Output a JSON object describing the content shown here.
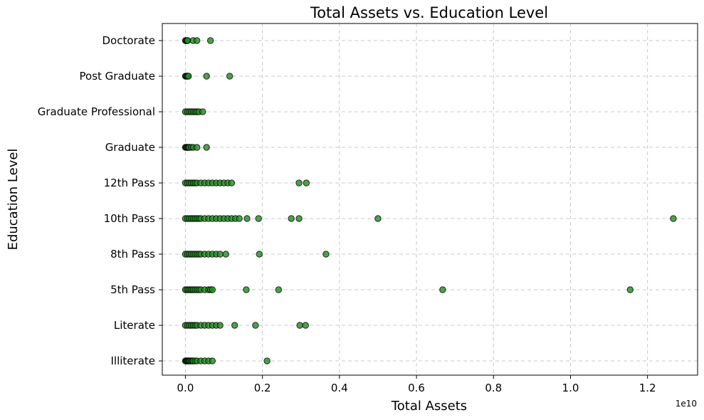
{
  "chart_data": {
    "type": "scatter",
    "title": "Total Assets vs. Education Level",
    "xlabel": "Total Assets",
    "ylabel": "Education Level",
    "x_offset_label": "1e10",
    "xlim": [
      -0.06,
      1.33
    ],
    "x_ticks": [
      0.0,
      0.2,
      0.4,
      0.6,
      0.8,
      1.0,
      1.2
    ],
    "x_tick_labels": [
      "0.0",
      "0.2",
      "0.4",
      "0.6",
      "0.8",
      "1.0",
      "1.2"
    ],
    "x_scale_factor": 10000000000.0,
    "categories": [
      "Illiterate",
      "Literate",
      "5th Pass",
      "8th Pass",
      "10th Pass",
      "12th Pass",
      "Graduate",
      "Graduate Professional",
      "Post Graduate",
      "Doctorate"
    ],
    "grid": true,
    "point_color": "#228b22",
    "edge_color": "#000000",
    "series": [
      {
        "values": [
          {
            "category": "Illiterate",
            "x": [
              0.0,
              0.002,
              0.004,
              0.006,
              0.008,
              0.01,
              0.012,
              0.015,
              0.018,
              0.02,
              0.025,
              0.03,
              0.04,
              0.05,
              0.06,
              0.07,
              0.212
            ]
          },
          {
            "category": "Literate",
            "x": [
              0.0,
              0.005,
              0.01,
              0.015,
              0.02,
              0.025,
              0.03,
              0.04,
              0.05,
              0.06,
              0.07,
              0.08,
              0.09,
              0.128,
              0.182,
              0.297,
              0.312
            ]
          },
          {
            "category": "5th Pass",
            "x": [
              0.0,
              0.004,
              0.008,
              0.012,
              0.016,
              0.02,
              0.025,
              0.03,
              0.035,
              0.04,
              0.05,
              0.06,
              0.065,
              0.07,
              0.158,
              0.242,
              0.668,
              1.155
            ]
          },
          {
            "category": "8th Pass",
            "x": [
              0.0,
              0.005,
              0.01,
              0.015,
              0.02,
              0.025,
              0.03,
              0.035,
              0.04,
              0.05,
              0.06,
              0.07,
              0.08,
              0.09,
              0.105,
              0.192,
              0.365
            ]
          },
          {
            "category": "10th Pass",
            "x": [
              0.0,
              0.005,
              0.01,
              0.015,
              0.02,
              0.025,
              0.03,
              0.035,
              0.04,
              0.05,
              0.06,
              0.07,
              0.08,
              0.09,
              0.1,
              0.11,
              0.12,
              0.13,
              0.14,
              0.16,
              0.19,
              0.275,
              0.295,
              0.5,
              1.267
            ]
          },
          {
            "category": "12th Pass",
            "x": [
              0.0,
              0.005,
              0.01,
              0.015,
              0.02,
              0.025,
              0.03,
              0.04,
              0.05,
              0.06,
              0.07,
              0.08,
              0.09,
              0.1,
              0.11,
              0.12,
              0.295,
              0.314
            ]
          },
          {
            "category": "Graduate",
            "x": [
              0.0,
              0.002,
              0.004,
              0.006,
              0.008,
              0.01,
              0.015,
              0.02,
              0.03,
              0.055
            ]
          },
          {
            "category": "Graduate Professional",
            "x": [
              0.0,
              0.005,
              0.01,
              0.015,
              0.02,
              0.025,
              0.03,
              0.035,
              0.045
            ]
          },
          {
            "category": "Post Graduate",
            "x": [
              0.0,
              0.002,
              0.004,
              0.006,
              0.008,
              0.055,
              0.115
            ]
          },
          {
            "category": "Doctorate",
            "x": [
              0.0,
              0.002,
              0.004,
              0.006,
              0.02,
              0.03,
              0.065
            ]
          }
        ]
      }
    ]
  }
}
